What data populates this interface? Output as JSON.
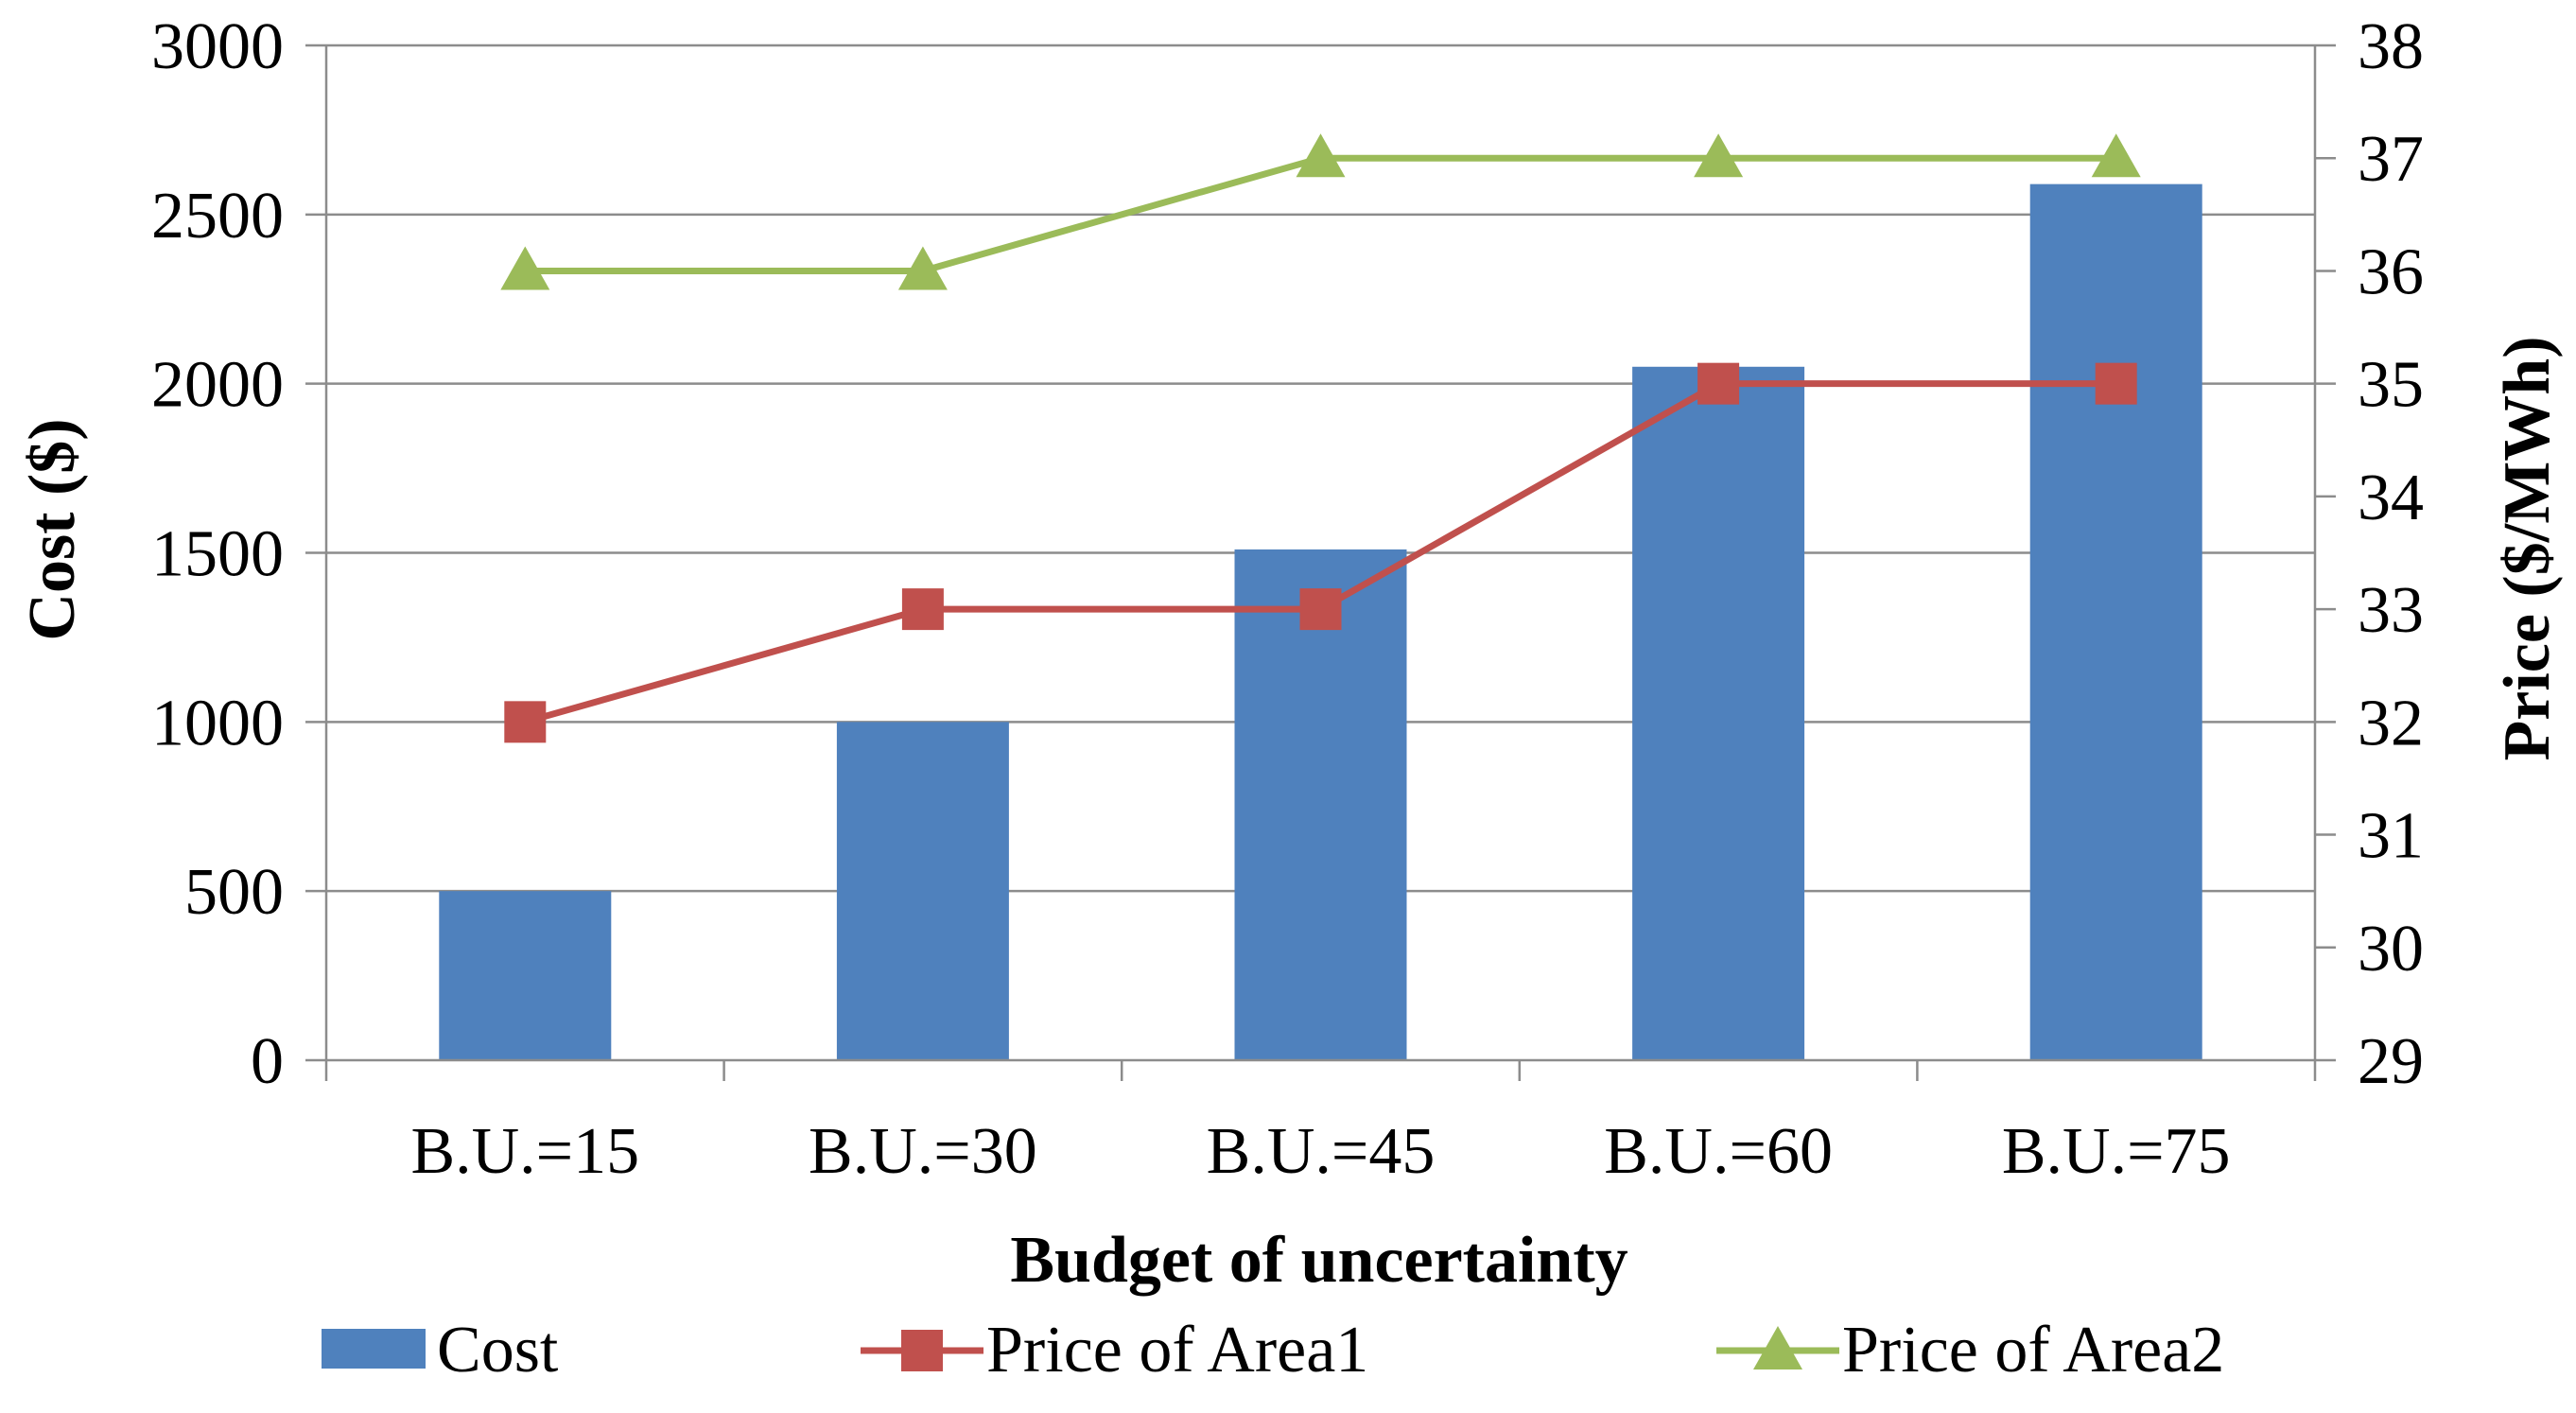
{
  "chart_data": {
    "type": "bar",
    "title": "",
    "xlabel": "Budget of uncertainty",
    "ylabel": "Cost ($)",
    "y2label": "Price ($/MWh)",
    "categories": [
      "B.U.=15",
      "B.U.=30",
      "B.U.=45",
      "B.U.=60",
      "B.U.=75"
    ],
    "ylim": [
      0,
      3000
    ],
    "y2lim": [
      29,
      38
    ],
    "yticks": [
      0,
      500,
      1000,
      1500,
      2000,
      2500,
      3000
    ],
    "y2ticks": [
      29,
      30,
      31,
      32,
      33,
      34,
      35,
      36,
      37,
      38
    ],
    "grid": true,
    "legend": "bottom",
    "series": [
      {
        "name": "Cost",
        "kind": "bar",
        "axis": "left",
        "color": "#4F81BD",
        "values": [
          500,
          1000,
          1510,
          2050,
          2590
        ]
      },
      {
        "name": "Price of Area1",
        "kind": "line",
        "axis": "right",
        "marker": "square",
        "color": "#C0504D",
        "values": [
          32,
          33,
          33,
          35,
          35
        ]
      },
      {
        "name": "Price of Area2",
        "kind": "line",
        "axis": "right",
        "marker": "triangle",
        "color": "#9BBB59",
        "values": [
          36,
          36,
          37,
          37,
          37
        ]
      }
    ]
  }
}
